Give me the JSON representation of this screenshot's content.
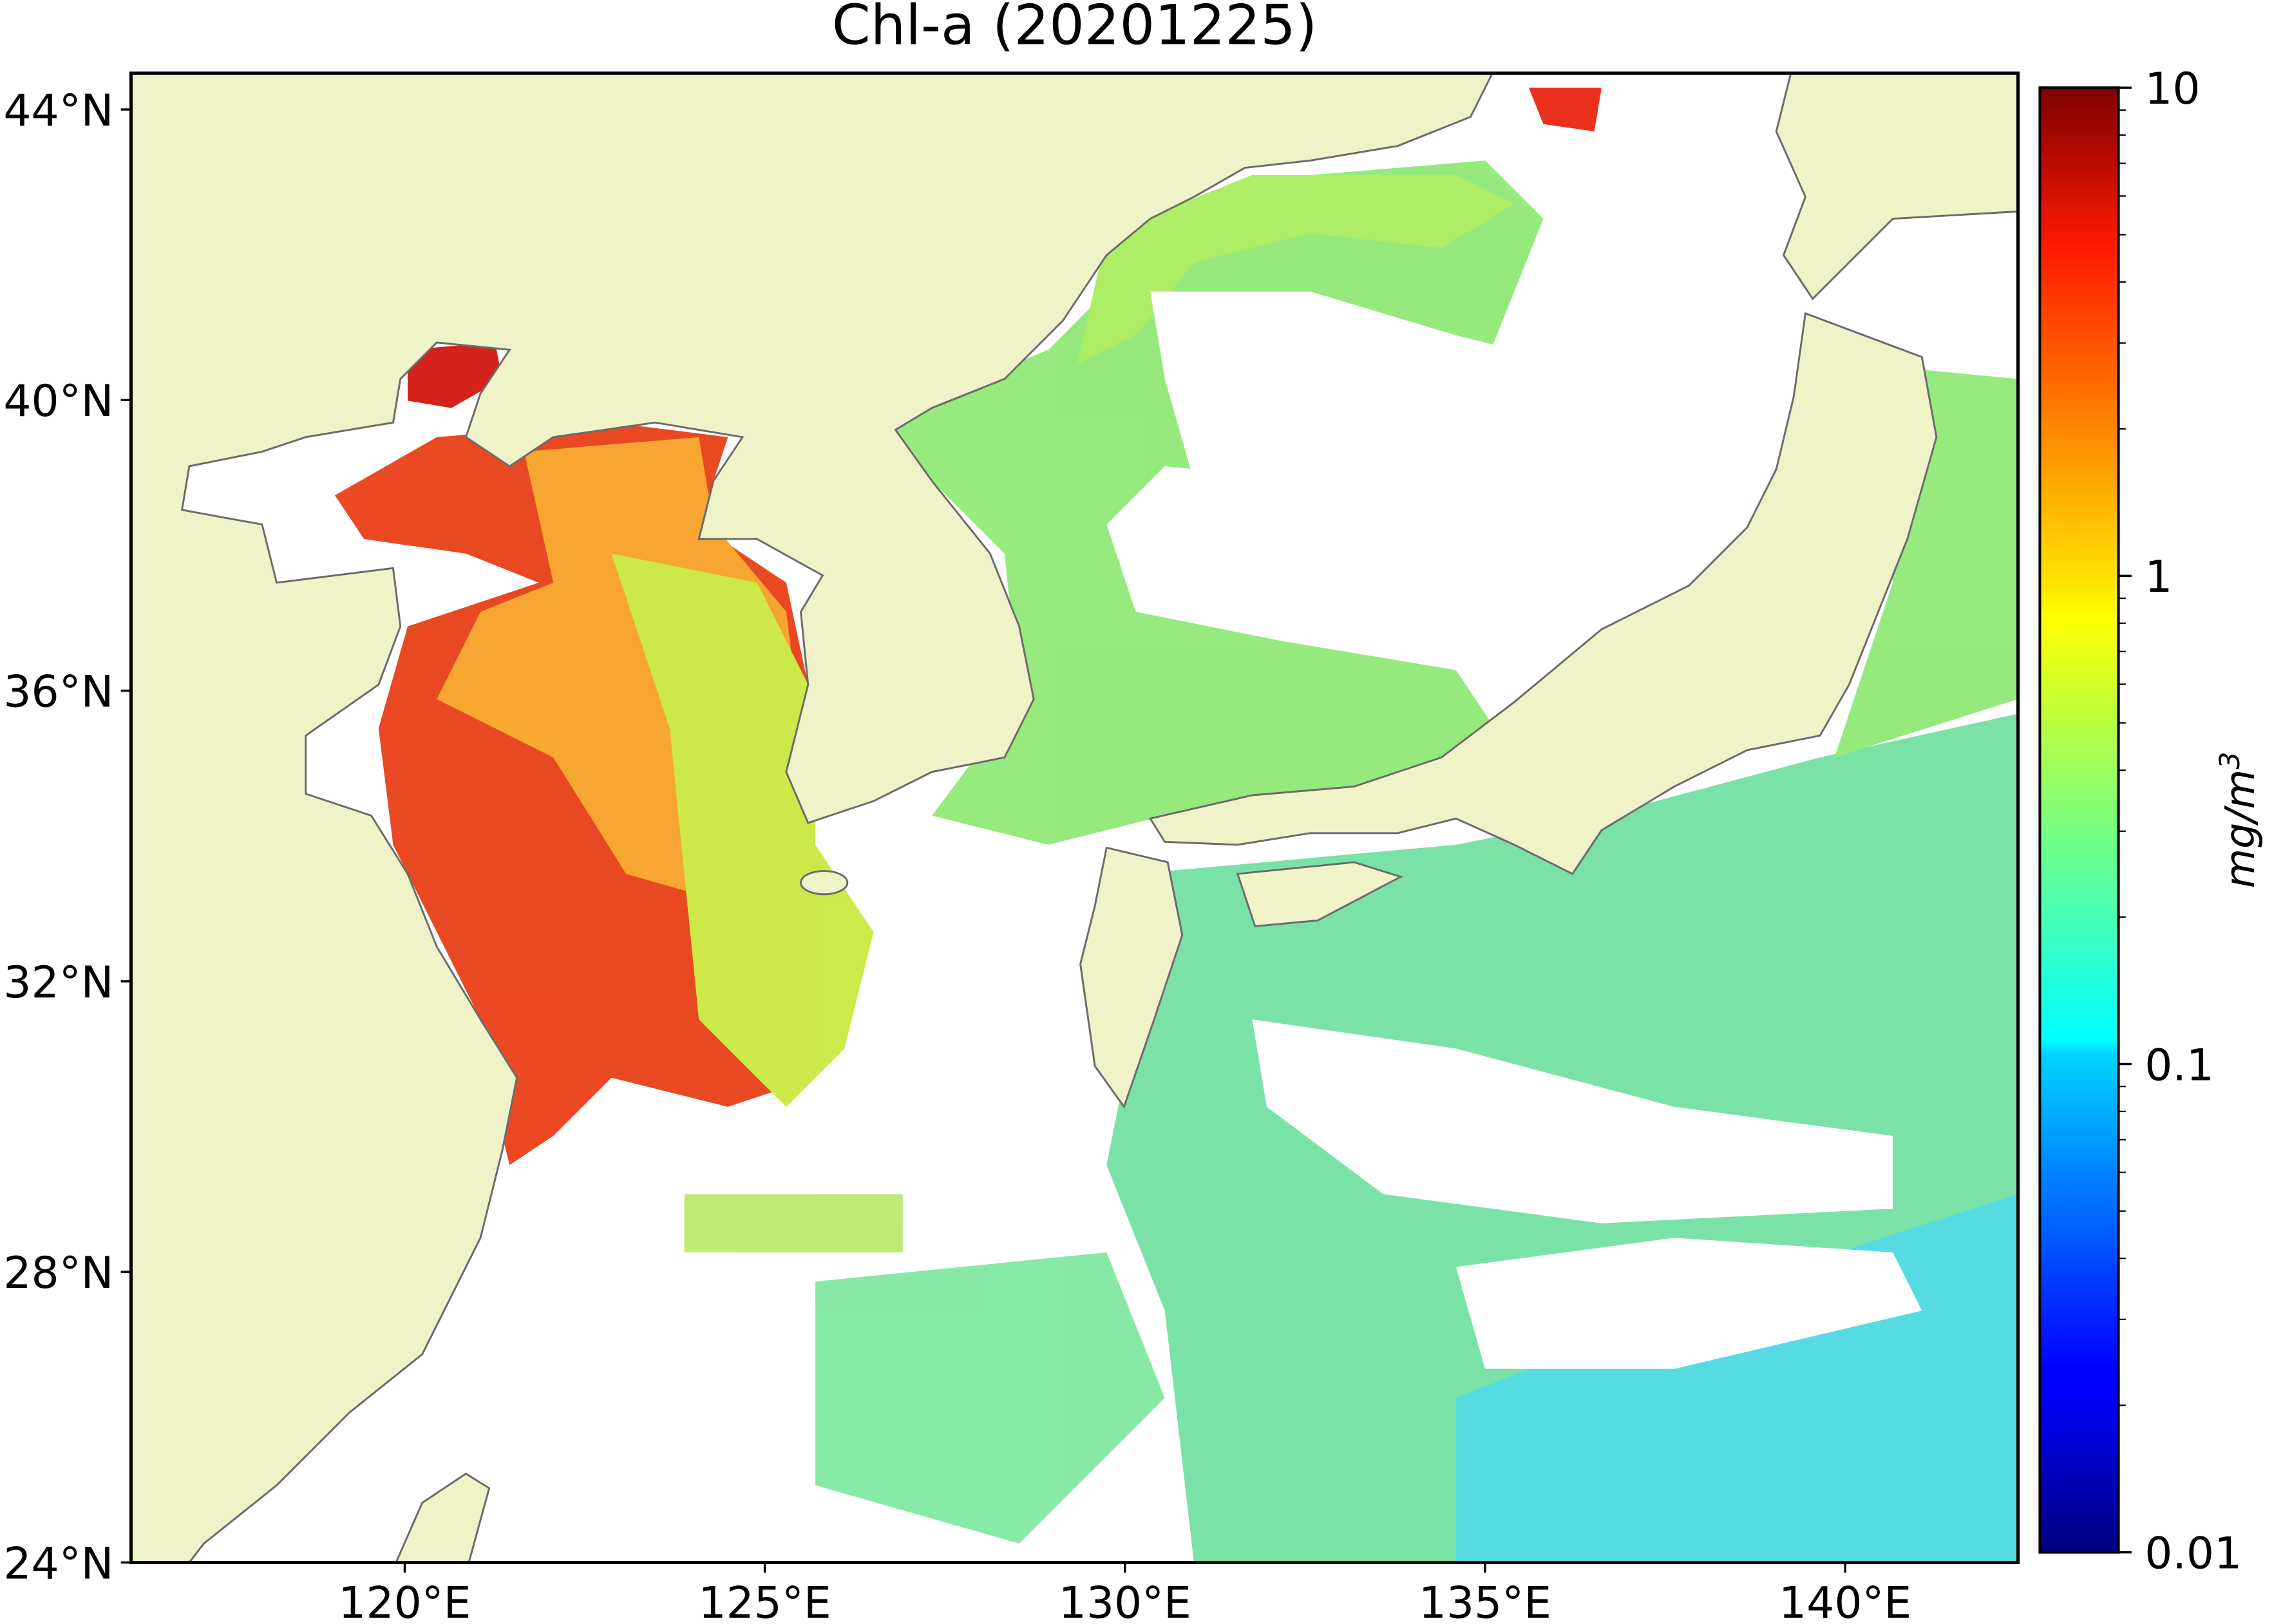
{
  "chart_data": {
    "type": "map",
    "title": "Chl-a (20201225)",
    "xlim": [
      116.2,
      142.4
    ],
    "ylim": [
      24,
      44.5
    ],
    "xticks": [
      {
        "value": 120,
        "label": "120°E"
      },
      {
        "value": 125,
        "label": "125°E"
      },
      {
        "value": 130,
        "label": "130°E"
      },
      {
        "value": 135,
        "label": "135°E"
      },
      {
        "value": 140,
        "label": "140°E"
      }
    ],
    "yticks": [
      {
        "value": 24,
        "label": "24°N"
      },
      {
        "value": 28,
        "label": "28°N"
      },
      {
        "value": 32,
        "label": "32°N"
      },
      {
        "value": 36,
        "label": "36°N"
      },
      {
        "value": 40,
        "label": "40°N"
      },
      {
        "value": 44,
        "label": "44°N"
      }
    ],
    "land_color": "#f0f2c8",
    "colorbar": {
      "label": {
        "text": "mg/m",
        "superscript": "3"
      },
      "lim": [
        0.01,
        10
      ],
      "ticks": [
        0.01,
        0.1,
        1,
        10
      ],
      "scale": "log",
      "colormap": "jet"
    }
  }
}
